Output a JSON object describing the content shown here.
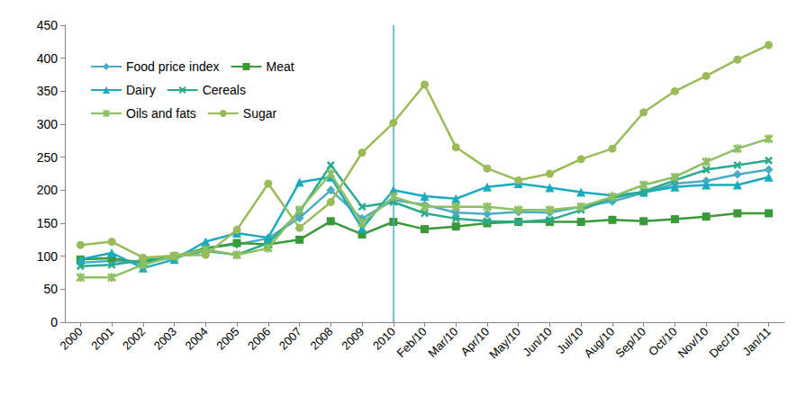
{
  "chart_data": {
    "type": "line",
    "categories": [
      "2000",
      "2001",
      "2002",
      "2003",
      "2004",
      "2005",
      "2006",
      "2007",
      "2008",
      "2009",
      "2010",
      "Feb/10",
      "Mar/10",
      "Apr/10",
      "May/10",
      "Jun/10",
      "Jul/10",
      "Aug/10",
      "Sep/10",
      "Oct/10",
      "Nov/10",
      "Dec/10",
      "Jan/11"
    ],
    "series": [
      {
        "name": "Food price index",
        "color": "#4bacc6",
        "marker": "diamond",
        "values": [
          90,
          93,
          90,
          98,
          112,
          118,
          127,
          158,
          200,
          157,
          185,
          178,
          166,
          164,
          167,
          166,
          175,
          183,
          196,
          210,
          214,
          224,
          231
        ]
      },
      {
        "name": "Meat",
        "color": "#3a9a3a",
        "marker": "square",
        "values": [
          95,
          97,
          90,
          100,
          112,
          120,
          118,
          125,
          153,
          133,
          152,
          141,
          145,
          150,
          152,
          152,
          152,
          155,
          153,
          156,
          160,
          165,
          165
        ]
      },
      {
        "name": "Dairy",
        "color": "#1aabbf",
        "marker": "triangle",
        "values": [
          95,
          105,
          82,
          95,
          122,
          135,
          128,
          212,
          220,
          142,
          200,
          191,
          187,
          205,
          210,
          204,
          197,
          192,
          197,
          205,
          208,
          208,
          220
        ]
      },
      {
        "name": "Cereals",
        "color": "#2bab8e",
        "marker": "x",
        "values": [
          85,
          87,
          94,
          98,
          108,
          102,
          120,
          167,
          238,
          175,
          182,
          165,
          157,
          153,
          152,
          155,
          170,
          188,
          198,
          215,
          231,
          238,
          245
        ]
      },
      {
        "name": "Oils and fats",
        "color": "#8dc063",
        "marker": "asterisk",
        "values": [
          68,
          68,
          87,
          100,
          110,
          102,
          112,
          170,
          225,
          150,
          190,
          175,
          175,
          175,
          170,
          170,
          175,
          190,
          208,
          220,
          243,
          263,
          278
        ]
      },
      {
        "name": "Sugar",
        "color": "#9bbb59",
        "marker": "circle",
        "values": [
          117,
          122,
          98,
          101,
          102,
          140,
          210,
          143,
          182,
          257,
          302,
          360,
          265,
          233,
          215,
          225,
          247,
          263,
          318,
          350,
          373,
          398,
          420
        ]
      }
    ],
    "ylim": [
      0,
      450
    ],
    "yticks": [
      0,
      50,
      100,
      150,
      200,
      250,
      300,
      350,
      400,
      450
    ],
    "grid": false,
    "legend": "top-left",
    "vline": "2010"
  }
}
